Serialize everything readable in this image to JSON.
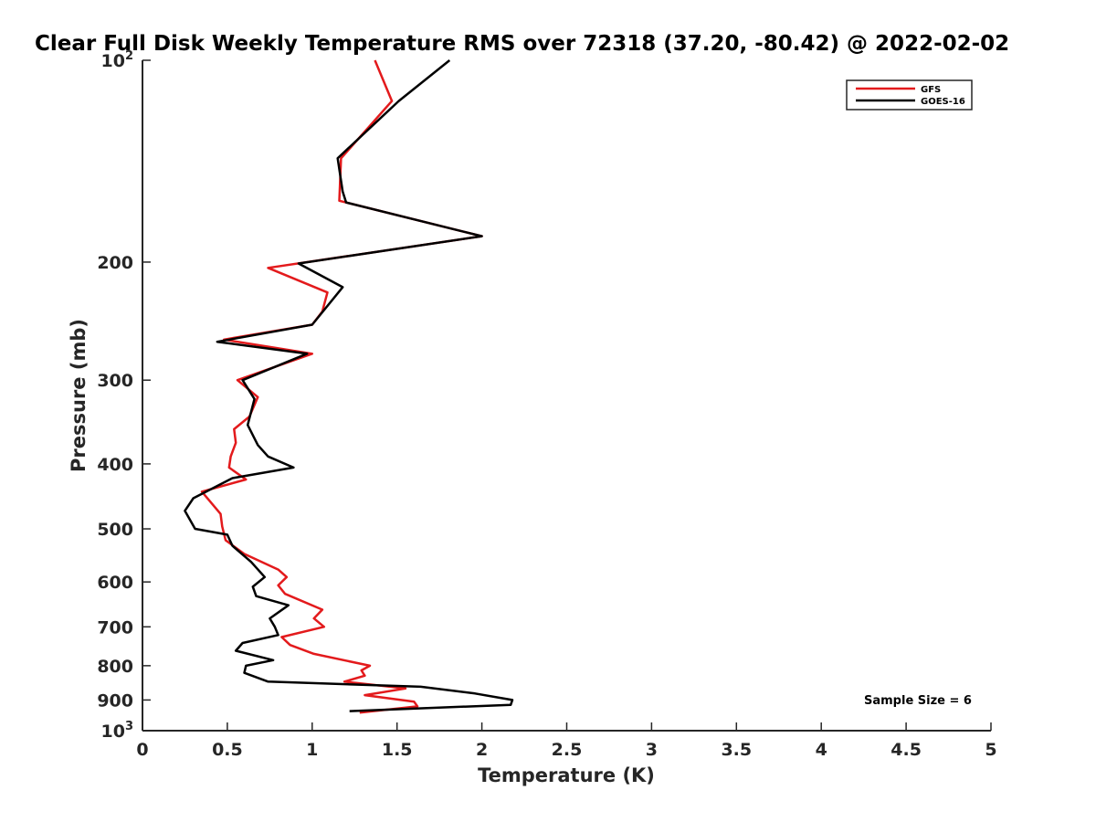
{
  "chart_data": {
    "type": "line",
    "title": "Clear Full Disk Weekly Temperature RMS over 72318 (37.20, -80.42) @ 2022-02-02",
    "xlabel": "Temperature (K)",
    "ylabel": "Pressure (mb)",
    "xlim": [
      0,
      5
    ],
    "ylim": [
      100,
      1000
    ],
    "yscale": "log",
    "y_reversed": true,
    "grid": false,
    "legend_position": "top-right",
    "x_ticks": [
      "0",
      "0.5",
      "1",
      "1.5",
      "2",
      "2.5",
      "3",
      "3.5",
      "4",
      "4.5",
      "5"
    ],
    "y_ticks": [
      {
        "value": 100,
        "base": "10",
        "exp": "2"
      },
      {
        "value": 200,
        "label": "200"
      },
      {
        "value": 300,
        "label": "300"
      },
      {
        "value": 400,
        "label": "400"
      },
      {
        "value": 500,
        "label": "500"
      },
      {
        "value": 600,
        "label": "600"
      },
      {
        "value": 700,
        "label": "700"
      },
      {
        "value": 800,
        "label": "800"
      },
      {
        "value": 900,
        "label": "900"
      },
      {
        "value": 1000,
        "base": "10",
        "exp": "3"
      }
    ],
    "annotation": "Sample Size = 6",
    "series": [
      {
        "name": "GFS",
        "color": "#e31a1c",
        "x": [
          1.37,
          1.47,
          1.17,
          1.16,
          2.0,
          0.74,
          1.09,
          1.06,
          1.0,
          0.48,
          1.0,
          0.56,
          0.68,
          0.63,
          0.54,
          0.55,
          0.52,
          0.51,
          0.61,
          0.35,
          0.46,
          0.47,
          0.49,
          0.6,
          0.8,
          0.85,
          0.8,
          0.84,
          1.06,
          1.01,
          1.07,
          0.82,
          0.87,
          1.01,
          1.34,
          1.29,
          1.31,
          1.19,
          1.55,
          1.31,
          1.6,
          1.62,
          1.28
        ],
        "y": [
          100,
          115,
          140,
          162,
          183,
          204,
          222,
          237,
          248,
          261,
          274,
          300,
          318,
          340,
          355,
          372,
          390,
          405,
          422,
          440,
          475,
          496,
          520,
          545,
          575,
          590,
          607,
          625,
          660,
          680,
          700,
          725,
          745,
          768,
          800,
          813,
          828,
          845,
          865,
          885,
          905,
          920,
          940
        ]
      },
      {
        "name": "GOES-16",
        "color": "#000000",
        "x": [
          1.81,
          1.51,
          1.15,
          1.18,
          1.2,
          2.0,
          0.92,
          1.18,
          1.0,
          0.44,
          0.97,
          0.59,
          0.66,
          0.62,
          0.68,
          0.74,
          0.89,
          0.53,
          0.3,
          0.25,
          0.31,
          0.5,
          0.53,
          0.64,
          0.72,
          0.65,
          0.67,
          0.86,
          0.75,
          0.78,
          0.8,
          0.59,
          0.55,
          0.77,
          0.61,
          0.6,
          0.74,
          1.64,
          1.96,
          2.18,
          2.17,
          1.22
        ],
        "y": [
          100,
          115,
          140,
          157,
          163,
          183,
          201,
          218,
          248,
          263,
          274,
          300,
          320,
          350,
          375,
          390,
          405,
          420,
          450,
          470,
          500,
          510,
          530,
          560,
          590,
          610,
          630,
          650,
          680,
          700,
          720,
          740,
          760,
          785,
          800,
          820,
          845,
          860,
          880,
          900,
          915,
          935
        ]
      }
    ]
  }
}
